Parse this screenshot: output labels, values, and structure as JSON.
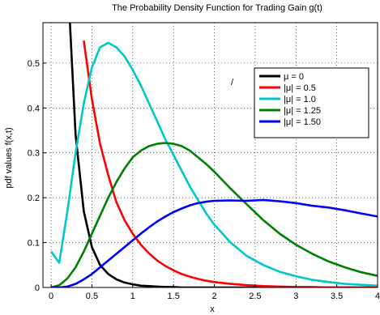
{
  "chart_data": {
    "type": "line",
    "title": "The Probability Density Function for Trading Gain  g(t)",
    "xlabel": "x",
    "ylabel": "pdf values  f(x,t)",
    "xlim": [
      -0.1,
      4.0
    ],
    "ylim": [
      0,
      0.59
    ],
    "grid": true,
    "legend_position": "right",
    "xticks": [
      "0",
      "0.5",
      "1",
      "1.5",
      "2",
      "2.5",
      "3",
      "3.5",
      "4"
    ],
    "yticks": [
      "0",
      "0.1",
      "0.2",
      "0.3",
      "0.4",
      "0.5"
    ],
    "x": [
      0.0,
      0.1,
      0.2,
      0.3,
      0.4,
      0.5,
      0.6,
      0.7,
      0.8,
      0.9,
      1.0,
      1.1,
      1.2,
      1.3,
      1.4,
      1.5,
      1.6,
      1.7,
      1.8,
      1.9,
      2.0,
      2.2,
      2.4,
      2.6,
      2.8,
      3.0,
      3.2,
      3.4,
      3.6,
      3.8,
      4.0
    ],
    "series": [
      {
        "name": "μ = 0",
        "color": "#000000",
        "values": [
          null,
          null,
          0.7,
          0.34,
          0.17,
          0.09,
          0.05,
          0.03,
          0.018,
          0.011,
          0.007,
          0.004,
          0.003,
          0.002,
          0.001,
          0.001,
          0,
          0,
          0,
          0,
          0,
          0,
          0,
          0,
          0,
          0,
          0,
          0,
          0,
          0,
          0
        ]
      },
      {
        "name": "|μ| = 0.5",
        "color": "#ff0000",
        "values": [
          null,
          null,
          null,
          null,
          0.55,
          0.42,
          0.32,
          0.25,
          0.19,
          0.15,
          0.12,
          0.095,
          0.076,
          0.06,
          0.048,
          0.038,
          0.03,
          0.024,
          0.019,
          0.015,
          0.012,
          0.008,
          0.005,
          0.003,
          0.002,
          0.001,
          0.001,
          0,
          0,
          0,
          0
        ]
      },
      {
        "name": "|μ| = 1.0",
        "color": "#00c8c8",
        "values": [
          0.08,
          0.055,
          0.17,
          0.3,
          0.41,
          0.49,
          0.535,
          0.545,
          0.535,
          0.515,
          0.485,
          0.45,
          0.41,
          0.37,
          0.33,
          0.295,
          0.26,
          0.225,
          0.195,
          0.165,
          0.14,
          0.1,
          0.07,
          0.05,
          0.035,
          0.025,
          0.017,
          0.012,
          0.008,
          0.006,
          0.004
        ]
      },
      {
        "name": "|μ| = 1.25",
        "color": "#008000",
        "values": [
          0,
          0.005,
          0.02,
          0.045,
          0.08,
          0.12,
          0.16,
          0.2,
          0.235,
          0.265,
          0.29,
          0.305,
          0.315,
          0.32,
          0.322,
          0.32,
          0.315,
          0.305,
          0.29,
          0.275,
          0.258,
          0.22,
          0.185,
          0.15,
          0.12,
          0.095,
          0.075,
          0.058,
          0.045,
          0.034,
          0.026
        ]
      },
      {
        "name": "|μ| = 1.50",
        "color": "#0000ff",
        "values": [
          0,
          0,
          0.002,
          0.008,
          0.018,
          0.03,
          0.045,
          0.06,
          0.075,
          0.09,
          0.105,
          0.12,
          0.134,
          0.147,
          0.158,
          0.168,
          0.176,
          0.183,
          0.188,
          0.191,
          0.193,
          0.194,
          0.193,
          0.195,
          0.192,
          0.188,
          0.182,
          0.178,
          0.172,
          0.165,
          0.158
        ]
      }
    ],
    "annotations": [
      "/"
    ]
  }
}
